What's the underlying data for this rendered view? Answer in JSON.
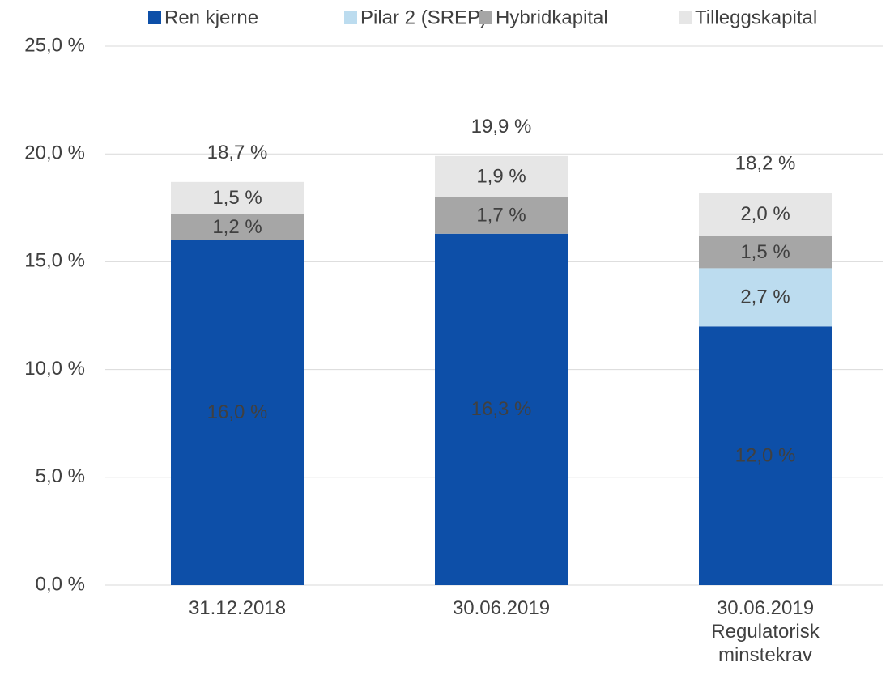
{
  "chart_data": {
    "type": "stacked_bar",
    "categories": [
      "31.12.2018",
      "30.06.2019",
      "30.06.2019 Regulatorisk minstekrav"
    ],
    "series": [
      {
        "name": "Ren kjerne",
        "color": "#0d4fa8",
        "label_color": "#ffffff",
        "values": [
          16.0,
          16.3,
          12.0
        ],
        "value_labels": [
          "16,0 %",
          "16,3 %",
          "12,0 %"
        ]
      },
      {
        "name": "Pilar 2 (SREP)",
        "color": "#bcdcef",
        "label_color": "#404040",
        "values": [
          null,
          null,
          2.7
        ],
        "value_labels": [
          null,
          null,
          "2,7 %"
        ]
      },
      {
        "name": "Hybridkapital",
        "color": "#a6a6a6",
        "label_color": "#404040",
        "values": [
          1.2,
          1.7,
          1.5
        ],
        "value_labels": [
          "1,2 %",
          "1,7 %",
          "1,5 %"
        ]
      },
      {
        "name": "Tilleggskapital",
        "color": "#e6e6e6",
        "label_color": "#404040",
        "values": [
          1.5,
          1.9,
          2.0
        ],
        "value_labels": [
          "1,5 %",
          "1,9 %",
          "2,0 %"
        ]
      }
    ],
    "totals": [
      18.7,
      19.9,
      18.2
    ],
    "total_labels": [
      "18,7 %",
      "19,9 %",
      "18,2 %"
    ],
    "ylim": [
      0,
      25
    ],
    "yticks": [
      {
        "value": 0,
        "label": "0,0 %"
      },
      {
        "value": 5,
        "label": "5,0 %"
      },
      {
        "value": 10,
        "label": "10,0 %"
      },
      {
        "value": 15,
        "label": "15,0 %"
      },
      {
        "value": 20,
        "label": "20,0 %"
      },
      {
        "value": 25,
        "label": "25,0 %"
      }
    ],
    "grid": true,
    "legend": "top"
  }
}
